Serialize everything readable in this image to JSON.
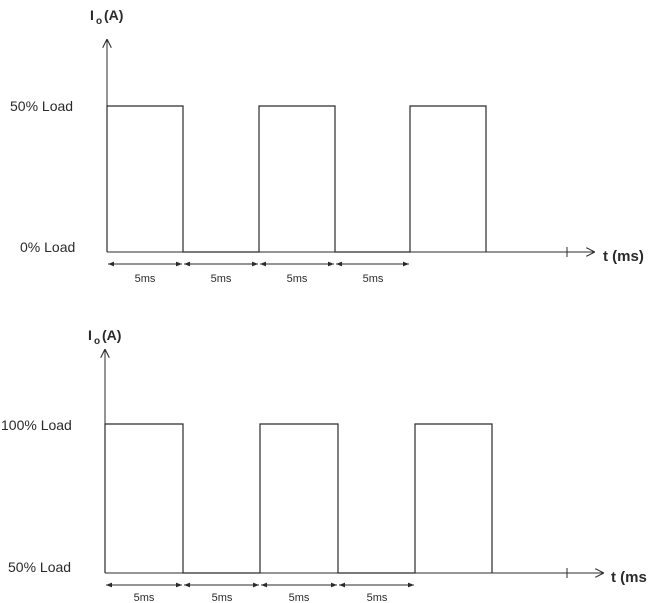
{
  "diagrams": [
    {
      "y_axis_label": "I",
      "y_axis_subscript": "o",
      "y_axis_unit": "(A)",
      "high_level_label": "50% Load",
      "low_level_label": "0% Load",
      "x_axis_label": "t (ms)",
      "interval_labels": [
        "5ms",
        "5ms",
        "5ms",
        "5ms"
      ]
    },
    {
      "y_axis_label": "I",
      "y_axis_subscript": "o",
      "y_axis_unit": "(A)",
      "high_level_label": "100% Load",
      "low_level_label": "50% Load",
      "x_axis_label": "t (ms",
      "interval_labels": [
        "5ms",
        "5ms",
        "5ms",
        "5ms"
      ]
    }
  ]
}
